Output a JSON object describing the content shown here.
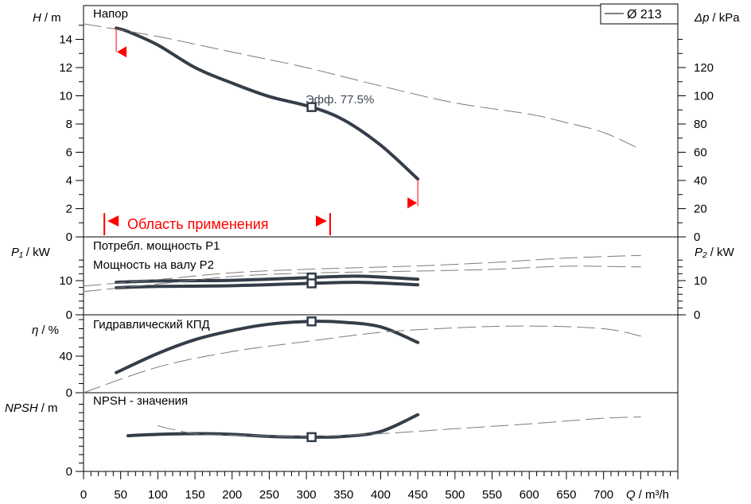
{
  "chart_data": {
    "type": "line",
    "x_axis": {
      "label": "Q / m³/h",
      "label_var": "Q",
      "label_unit": "/ m³/h",
      "range": [
        0,
        800
      ],
      "ticks": [
        "0",
        "50",
        "100",
        "150",
        "200",
        "250",
        "300",
        "350",
        "400",
        "450",
        "500",
        "550",
        "600",
        "650",
        "700"
      ]
    },
    "legend": {
      "entries": [
        "Ø 213"
      ],
      "position": "top-right"
    },
    "operating_point": {
      "q": 307,
      "efficiency_label": "Эфф. 77.5%"
    },
    "panels": [
      {
        "id": "head",
        "title": "Напор",
        "ylabel_left_var": "H",
        "ylabel_left_unit": "/ m",
        "ylabel_right_var": "Δp",
        "ylabel_right_unit": "/ kPa",
        "y_left_range": [
          0,
          15
        ],
        "y_left_ticks": [
          "0",
          "2",
          "4",
          "6",
          "8",
          "10",
          "12",
          "14"
        ],
        "y_right_range": [
          0,
          147
        ],
        "y_right_ticks": [
          "0",
          "20",
          "40",
          "60",
          "80",
          "100",
          "120"
        ],
        "application_range": {
          "label": "Область применения",
          "from": 28,
          "to": 332
        },
        "series": [
          {
            "style": "solid",
            "points": [
              [
                44,
                14.8
              ],
              [
                60,
                14.55
              ],
              [
                100,
                13.6
              ],
              [
                150,
                12.0
              ],
              [
                200,
                10.9
              ],
              [
                250,
                9.95
              ],
              [
                307,
                9.2
              ],
              [
                350,
                8.3
              ],
              [
                400,
                6.5
              ],
              [
                450,
                4.1
              ]
            ]
          },
          {
            "style": "dashed",
            "points": [
              [
                0,
                15.1
              ],
              [
                100,
                14.2
              ],
              [
                200,
                13.1
              ],
              [
                300,
                12.0
              ],
              [
                400,
                10.7
              ],
              [
                500,
                9.5
              ],
              [
                600,
                8.7
              ],
              [
                650,
                8.1
              ],
              [
                700,
                7.4
              ],
              [
                750,
                6.2
              ]
            ]
          }
        ]
      },
      {
        "id": "power",
        "title_p1": "Потребл. мощность P1",
        "title_p2": "Мощность на валу P2",
        "ylabel_left_var": "P₁",
        "ylabel_left_unit": "/ kW",
        "ylabel_right_var": "P₂",
        "ylabel_right_unit": "/ kW",
        "y_range": [
          0,
          17
        ],
        "y_left_ticks": [
          "0",
          "10"
        ],
        "y_right_ticks": [
          "0",
          "10"
        ],
        "series": [
          {
            "name": "P1",
            "style": "solid",
            "points": [
              [
                44,
                9.5
              ],
              [
                100,
                9.9
              ],
              [
                200,
                10.1
              ],
              [
                307,
                10.9
              ],
              [
                370,
                11.3
              ],
              [
                450,
                10.4
              ]
            ]
          },
          {
            "name": "P2",
            "style": "solid",
            "points": [
              [
                44,
                7.9
              ],
              [
                100,
                8.3
              ],
              [
                200,
                8.5
              ],
              [
                307,
                9.2
              ],
              [
                370,
                9.5
              ],
              [
                450,
                8.8
              ]
            ]
          },
          {
            "name": "P1",
            "style": "dashed",
            "points": [
              [
                0,
                8.4
              ],
              [
                100,
                10.3
              ],
              [
                200,
                12.3
              ],
              [
                300,
                13.3
              ],
              [
                450,
                14.3
              ],
              [
                550,
                15.3
              ],
              [
                650,
                16.6
              ],
              [
                750,
                17.4
              ]
            ]
          },
          {
            "name": "P2",
            "style": "dashed",
            "points": [
              [
                0,
                6.8
              ],
              [
                100,
                9.0
              ],
              [
                200,
                11.2
              ],
              [
                300,
                12.2
              ],
              [
                450,
                12.8
              ],
              [
                550,
                13.3
              ],
              [
                650,
                14.2
              ],
              [
                750,
                14.0
              ]
            ]
          }
        ]
      },
      {
        "id": "efficiency",
        "title": "Гидравлический КПД",
        "ylabel_left_var": "η",
        "ylabel_left_unit": "/ %",
        "y_range": [
          0,
          85
        ],
        "y_left_ticks": [
          "0",
          "40"
        ],
        "series": [
          {
            "style": "solid",
            "points": [
              [
                44,
                22
              ],
              [
                100,
                43
              ],
              [
                150,
                58
              ],
              [
                200,
                68
              ],
              [
                250,
                75
              ],
              [
                307,
                78
              ],
              [
                350,
                77
              ],
              [
                400,
                72
              ],
              [
                450,
                55
              ]
            ]
          },
          {
            "style": "dashed",
            "points": [
              [
                0,
                0
              ],
              [
                100,
                28
              ],
              [
                200,
                45
              ],
              [
                300,
                56
              ],
              [
                400,
                66
              ],
              [
                500,
                71
              ],
              [
                600,
                73
              ],
              [
                700,
                70
              ],
              [
                750,
                62
              ]
            ]
          }
        ]
      },
      {
        "id": "npsh",
        "title": "NPSH - значения",
        "ylabel_left_var": "NPSH",
        "ylabel_left_unit": "/ m",
        "y_range": [
          0,
          10
        ],
        "y_left_ticks": [
          "0"
        ],
        "series": [
          {
            "style": "solid",
            "points": [
              [
                60,
                5.1
              ],
              [
                100,
                5.3
              ],
              [
                150,
                5.4
              ],
              [
                200,
                5.3
              ],
              [
                250,
                5.0
              ],
              [
                307,
                4.9
              ],
              [
                350,
                5.0
              ],
              [
                400,
                5.7
              ],
              [
                450,
                8.1
              ]
            ]
          },
          {
            "style": "dashed",
            "points": [
              [
                100,
                6.5
              ],
              [
                150,
                5.4
              ],
              [
                200,
                5.2
              ],
              [
                300,
                5.0
              ],
              [
                400,
                5.4
              ],
              [
                500,
                6.1
              ],
              [
                600,
                6.8
              ],
              [
                700,
                7.6
              ],
              [
                750,
                7.8
              ]
            ]
          }
        ]
      }
    ],
    "colors": {
      "solid": "#343e4a",
      "dashed": "#7b7b7b",
      "range": "#ff0000",
      "axis": "#000000"
    }
  }
}
